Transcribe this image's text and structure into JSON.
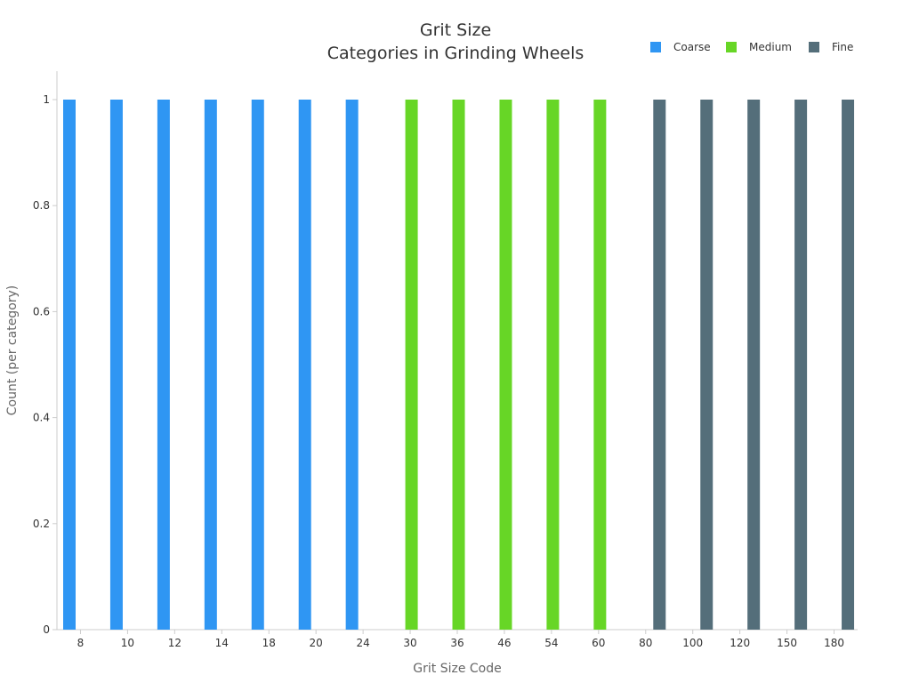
{
  "chart_data": {
    "type": "bar",
    "title": [
      "Grit Size",
      "Categories in Grinding Wheels"
    ],
    "xlabel": "Grit Size Code",
    "ylabel": "Count (per category)",
    "categories": [
      "8",
      "10",
      "12",
      "14",
      "18",
      "20",
      "24",
      "30",
      "36",
      "46",
      "54",
      "60",
      "80",
      "100",
      "120",
      "150",
      "180"
    ],
    "ylim": [
      0,
      1
    ],
    "yticks": [
      "0",
      "0.2",
      "0.4",
      "0.6",
      "0.8",
      "1"
    ],
    "grid": false,
    "legend_position": "top-right",
    "series": [
      {
        "name": "Coarse",
        "color": "#2F96F3",
        "values": [
          1,
          1,
          1,
          1,
          1,
          1,
          1,
          null,
          null,
          null,
          null,
          null,
          null,
          null,
          null,
          null,
          null
        ]
      },
      {
        "name": "Medium",
        "color": "#67D626",
        "values": [
          null,
          null,
          null,
          null,
          null,
          null,
          null,
          1,
          1,
          1,
          1,
          1,
          null,
          null,
          null,
          null,
          null
        ]
      },
      {
        "name": "Fine",
        "color": "#546E7A",
        "values": [
          null,
          null,
          null,
          null,
          null,
          null,
          null,
          null,
          null,
          null,
          null,
          null,
          1,
          1,
          1,
          1,
          1
        ]
      }
    ]
  }
}
